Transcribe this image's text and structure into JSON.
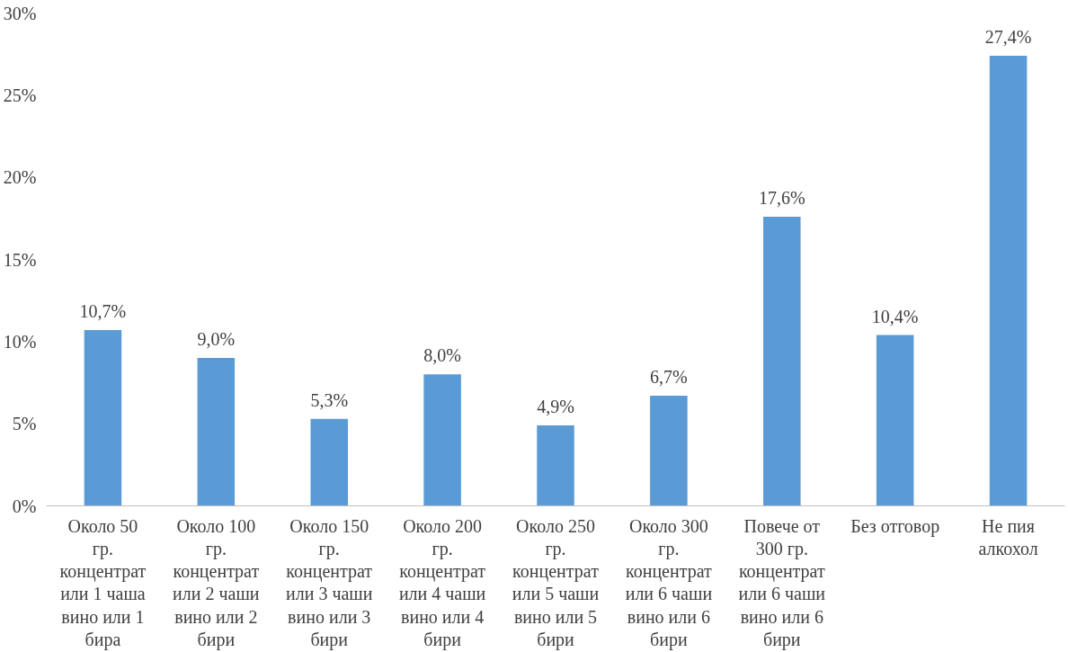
{
  "chart_data": {
    "type": "bar",
    "categories": [
      "Около 50 гр. концентрат или 1 чаша вино или 1 бира",
      "Около 100 гр. концентрат или 2 чаши вино или 2 бири",
      "Около 150 гр. концентрат или 3 чаши вино или 3 бири",
      "Около 200 гр. концентрат или 4 чаши вино или 4 бири",
      "Около 250 гр. концентрат или 5 чаши вино или 5 бири",
      "Около 300 гр. концентрат или 6 чаши вино или 6 бири",
      "Повече от 300 гр. концентрат или 6 чаши вино или 6 бири",
      "Без отговор",
      "Не пия алкохол"
    ],
    "values": [
      10.7,
      9.0,
      5.3,
      8.0,
      4.9,
      6.7,
      17.6,
      10.4,
      27.4
    ],
    "value_labels": [
      "10,7%",
      "9,0%",
      "5,3%",
      "8,0%",
      "4,9%",
      "6,7%",
      "17,6%",
      "10,4%",
      "27,4%"
    ],
    "color": "#5b9bd5",
    "ylim": [
      0,
      30
    ],
    "yticks": [
      {
        "value": 0,
        "label": "0%"
      },
      {
        "value": 5,
        "label": "5%"
      },
      {
        "value": 10,
        "label": "10%"
      },
      {
        "value": 15,
        "label": "15%"
      },
      {
        "value": 20,
        "label": "20%"
      },
      {
        "value": 25,
        "label": "25%"
      },
      {
        "value": 30,
        "label": "30%"
      }
    ],
    "grid": false
  }
}
